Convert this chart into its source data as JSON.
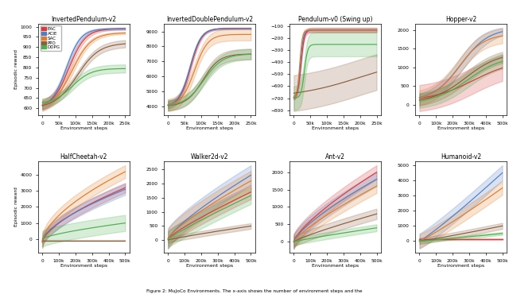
{
  "titles": [
    "InvertedPendulum-v2",
    "InvertedDoublePendulum-v2",
    "Pendulum-v0 (Swing up)",
    "Hopper-v2",
    "HalfCheetah-v2",
    "Walker2d-v2",
    "Ant-v2",
    "Humanoid-v2"
  ],
  "algorithms": [
    "EAC",
    "ACIE",
    "SAC",
    "PPO",
    "DDPG"
  ],
  "colors": [
    "#d93b3b",
    "#4f7ec7",
    "#e07c2a",
    "#8b5e3c",
    "#4cae4c"
  ],
  "xlabel": "Environment steps",
  "ylabel": "Episodic reward",
  "caption": "Figure 2: MuJoCo Environments. The x-axis shows the number of environment steps and the"
}
